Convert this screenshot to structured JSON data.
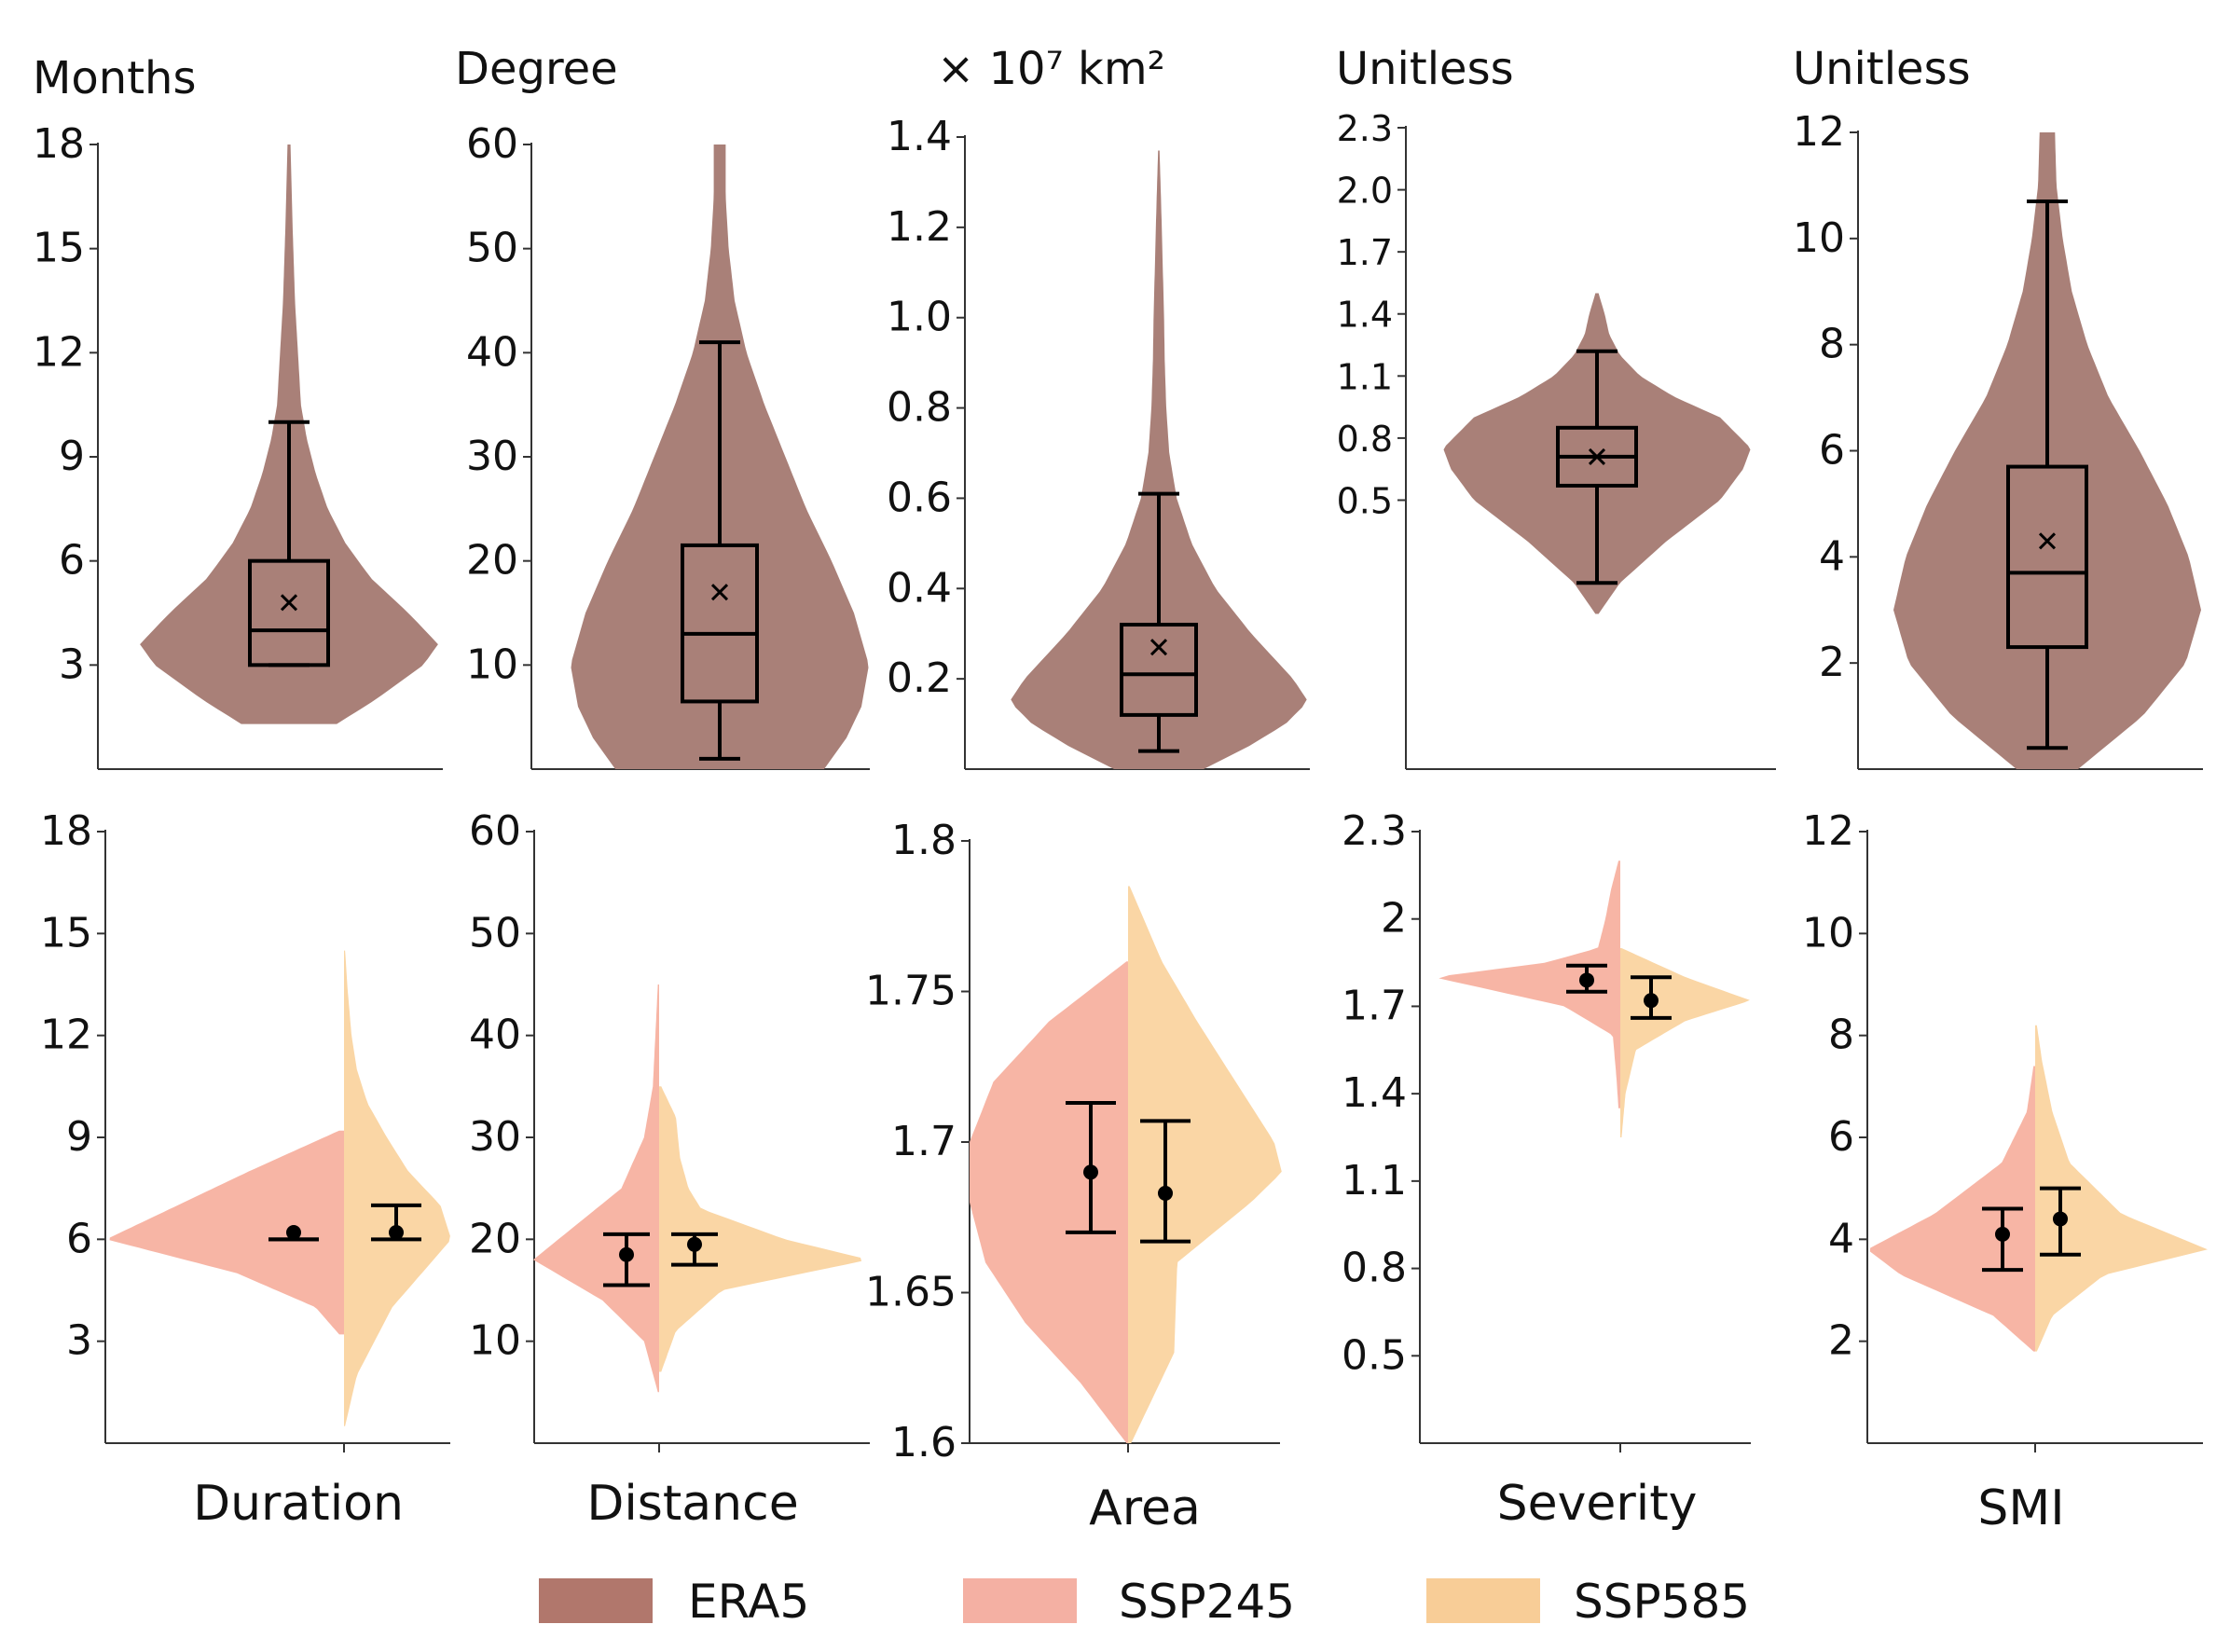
{
  "chart_data": {
    "type": "violin",
    "colors": {
      "ERA5": "#a98078",
      "SSP245": "#f7b5a5",
      "SSP585": "#fad6a5",
      "line": "#000000"
    },
    "legend": [
      {
        "label": "ERA5",
        "color": "#b1776c"
      },
      {
        "label": "SSP245",
        "color": "#f4b0a3"
      },
      {
        "label": "SSP585",
        "color": "#f8cd97"
      }
    ],
    "panels": [
      {
        "variable": "Duration",
        "unit": "Months",
        "top": {
          "ylim": [
            0,
            18
          ],
          "ticks": [
            3,
            6,
            9,
            12,
            15,
            18
          ],
          "tick_labels": [
            "3",
            "6",
            "9",
            "12",
            "15",
            "18"
          ],
          "violin_range": [
            1.3,
            18.0
          ],
          "density": [
            [
              1.3,
              0.32
            ],
            [
              2,
              0.58
            ],
            [
              3,
              0.9
            ],
            [
              3.6,
              1.0
            ],
            [
              4.5,
              0.8
            ],
            [
              5.5,
              0.55
            ],
            [
              6.5,
              0.38
            ],
            [
              7.5,
              0.26
            ],
            [
              8.5,
              0.18
            ],
            [
              9.5,
              0.12
            ],
            [
              10.5,
              0.08
            ],
            [
              12,
              0.06
            ],
            [
              13.5,
              0.04
            ],
            [
              15.5,
              0.025
            ],
            [
              18,
              0.01
            ]
          ],
          "box": {
            "q1": 3.0,
            "median": 4.0,
            "q3": 6.0,
            "whisker_low": 3.0,
            "whisker_high": 10.0,
            "mean": 4.8
          }
        },
        "bottom": {
          "ylim": [
            0,
            18
          ],
          "ticks": [
            3,
            6,
            9,
            12,
            15,
            18
          ],
          "tick_labels": [
            "3",
            "6",
            "9",
            "12",
            "15",
            "18"
          ],
          "ssp245_range": [
            3.2,
            9.2
          ],
          "ssp245_density": [
            [
              3.2,
              0.02
            ],
            [
              4,
              0.12
            ],
            [
              5,
              0.45
            ],
            [
              6,
              1.0
            ],
            [
              7,
              0.7
            ],
            [
              8,
              0.4
            ],
            [
              9.2,
              0.02
            ]
          ],
          "ssp585_range": [
            0.5,
            14.5
          ],
          "ssp585_density": [
            [
              0.5,
              0.01
            ],
            [
              2,
              0.12
            ],
            [
              4,
              0.45
            ],
            [
              6,
              1.0
            ],
            [
              7,
              0.9
            ],
            [
              8,
              0.6
            ],
            [
              9,
              0.4
            ],
            [
              10,
              0.22
            ],
            [
              11,
              0.12
            ],
            [
              12,
              0.07
            ],
            [
              13.5,
              0.03
            ],
            [
              14.5,
              0.01
            ]
          ],
          "ssp245_mean": 6.2,
          "ssp245_ci": [
            6.0,
            6.0
          ],
          "ssp585_mean": 6.2,
          "ssp585_ci": [
            6.0,
            7.0
          ]
        }
      },
      {
        "variable": "Distance",
        "unit": "Degree",
        "top": {
          "ylim": [
            0,
            60
          ],
          "ticks": [
            10,
            20,
            30,
            40,
            50,
            60
          ],
          "tick_labels": [
            "10",
            "20",
            "30",
            "40",
            "50",
            "60"
          ],
          "violin_range": [
            0.0,
            60.0
          ],
          "density": [
            [
              0,
              0.7
            ],
            [
              3,
              0.85
            ],
            [
              6,
              0.95
            ],
            [
              10,
              1.0
            ],
            [
              15,
              0.9
            ],
            [
              20,
              0.75
            ],
            [
              25,
              0.58
            ],
            [
              30,
              0.44
            ],
            [
              35,
              0.3
            ],
            [
              40,
              0.18
            ],
            [
              45,
              0.1
            ],
            [
              50,
              0.06
            ],
            [
              55,
              0.04
            ],
            [
              60,
              0.04
            ]
          ],
          "box": {
            "q1": 6.5,
            "median": 13.0,
            "q3": 21.5,
            "whisker_low": 1.0,
            "whisker_high": 41.0,
            "mean": 17.0
          }
        },
        "bottom": {
          "ylim": [
            0,
            60
          ],
          "ticks": [
            10,
            20,
            30,
            40,
            50,
            60
          ],
          "tick_labels": [
            "10",
            "20",
            "30",
            "40",
            "50",
            "60"
          ],
          "ssp245_range": [
            5.0,
            45.0
          ],
          "ssp245_density": [
            [
              5,
              0.01
            ],
            [
              10,
              0.12
            ],
            [
              14,
              0.45
            ],
            [
              18,
              1.0
            ],
            [
              21,
              0.7
            ],
            [
              25,
              0.3
            ],
            [
              30,
              0.12
            ],
            [
              35,
              0.05
            ],
            [
              45,
              0.01
            ]
          ],
          "ssp585_range": [
            7.0,
            35.0
          ],
          "ssp585_density": [
            [
              7,
              0.01
            ],
            [
              11,
              0.08
            ],
            [
              15,
              0.3
            ],
            [
              18,
              1.0
            ],
            [
              20,
              0.6
            ],
            [
              23,
              0.2
            ],
            [
              25,
              0.14
            ],
            [
              28,
              0.1
            ],
            [
              32,
              0.08
            ],
            [
              35,
              0.01
            ]
          ],
          "ssp245_mean": 18.5,
          "ssp245_ci": [
            15.5,
            20.5
          ],
          "ssp585_mean": 19.5,
          "ssp585_ci": [
            17.5,
            20.5
          ]
        }
      },
      {
        "variable": "Area",
        "unit": "× 10⁷ km²",
        "top": {
          "ylim": [
            0,
            1.4
          ],
          "ticks": [
            0.2,
            0.4,
            0.6,
            0.8,
            1.0,
            1.2,
            1.4
          ],
          "tick_labels": [
            "0.2",
            "0.4",
            "0.6",
            "0.8",
            "1.0",
            "1.2",
            "1.4"
          ],
          "violin_range": [
            0.0,
            1.37
          ],
          "density": [
            [
              0,
              0.3
            ],
            [
              0.05,
              0.6
            ],
            [
              0.1,
              0.85
            ],
            [
              0.15,
              1.0
            ],
            [
              0.2,
              0.9
            ],
            [
              0.3,
              0.62
            ],
            [
              0.4,
              0.38
            ],
            [
              0.5,
              0.22
            ],
            [
              0.6,
              0.12
            ],
            [
              0.7,
              0.07
            ],
            [
              0.8,
              0.05
            ],
            [
              0.9,
              0.04
            ],
            [
              1.0,
              0.035
            ],
            [
              1.2,
              0.02
            ],
            [
              1.37,
              0.005
            ]
          ],
          "box": {
            "q1": 0.12,
            "median": 0.21,
            "q3": 0.32,
            "whisker_low": 0.04,
            "whisker_high": 0.61,
            "mean": 0.27
          }
        },
        "bottom": {
          "ylim": [
            1.6,
            1.8
          ],
          "ticks": [
            1.6,
            1.65,
            1.7,
            1.75,
            1.8
          ],
          "tick_labels": [
            "1.6",
            "1.65",
            "1.7",
            "1.75",
            "1.8"
          ],
          "ssp245_range": [
            1.6,
            1.76
          ],
          "ssp245_density": [
            [
              1.6,
              0.01
            ],
            [
              1.62,
              0.3
            ],
            [
              1.64,
              0.65
            ],
            [
              1.66,
              0.9
            ],
            [
              1.68,
              1.0
            ],
            [
              1.7,
              1.0
            ],
            [
              1.72,
              0.85
            ],
            [
              1.74,
              0.5
            ],
            [
              1.76,
              0.01
            ]
          ],
          "ssp585_range": [
            1.6,
            1.785
          ],
          "ssp585_density": [
            [
              1.6,
              0.02
            ],
            [
              1.63,
              0.3
            ],
            [
              1.66,
              0.32
            ],
            [
              1.68,
              0.8
            ],
            [
              1.69,
              1.0
            ],
            [
              1.7,
              0.95
            ],
            [
              1.72,
              0.7
            ],
            [
              1.74,
              0.45
            ],
            [
              1.76,
              0.22
            ],
            [
              1.785,
              0.01
            ]
          ],
          "ssp245_mean": 1.69,
          "ssp245_ci": [
            1.67,
            1.713
          ],
          "ssp585_mean": 1.683,
          "ssp585_ci": [
            1.667,
            1.707
          ]
        }
      },
      {
        "variable": "Severity",
        "unit": "Unitless",
        "top": {
          "ylim": [
            -0.8,
            2.3
          ],
          "ticks": [
            0.5,
            0.8,
            1.1,
            1.4,
            1.7,
            2.0,
            2.3
          ],
          "tick_labels": [
            "0.5",
            "0.8",
            "1.1",
            "1.4",
            "1.7",
            "2.0",
            "2.3"
          ],
          "violin_range": [
            -0.05,
            1.5
          ],
          "density": [
            [
              -0.05,
              0.01
            ],
            [
              0.1,
              0.15
            ],
            [
              0.3,
              0.45
            ],
            [
              0.5,
              0.8
            ],
            [
              0.65,
              0.95
            ],
            [
              0.75,
              1.0
            ],
            [
              0.9,
              0.8
            ],
            [
              1.0,
              0.5
            ],
            [
              1.1,
              0.28
            ],
            [
              1.2,
              0.15
            ],
            [
              1.3,
              0.08
            ],
            [
              1.4,
              0.05
            ],
            [
              1.5,
              0.01
            ]
          ],
          "box": {
            "q1": 0.57,
            "median": 0.71,
            "q3": 0.85,
            "whisker_low": 0.1,
            "whisker_high": 1.22,
            "mean": 0.71
          }
        },
        "bottom": {
          "ylim": [
            0.2,
            2.3
          ],
          "ticks": [
            0.5,
            0.8,
            1.1,
            1.4,
            1.7,
            2.0,
            2.3
          ],
          "tick_labels": [
            "0.5",
            "0.8",
            "1.1",
            "1.4",
            "1.7",
            "2",
            "2.3"
          ],
          "ssp245_range": [
            1.35,
            2.2
          ],
          "ssp245_density": [
            [
              1.35,
              0.01
            ],
            [
              1.45,
              0.02
            ],
            [
              1.6,
              0.04
            ],
            [
              1.7,
              0.3
            ],
            [
              1.8,
              1.0
            ],
            [
              1.85,
              0.4
            ],
            [
              1.9,
              0.12
            ],
            [
              2.0,
              0.08
            ],
            [
              2.1,
              0.05
            ],
            [
              2.2,
              0.01
            ]
          ],
          "ssp585_range": [
            1.25,
            1.9
          ],
          "ssp585_density": [
            [
              1.25,
              0.01
            ],
            [
              1.4,
              0.04
            ],
            [
              1.55,
              0.12
            ],
            [
              1.65,
              0.5
            ],
            [
              1.72,
              1.0
            ],
            [
              1.8,
              0.5
            ],
            [
              1.9,
              0.01
            ]
          ],
          "ssp245_mean": 1.79,
          "ssp245_ci": [
            1.75,
            1.84
          ],
          "ssp585_mean": 1.72,
          "ssp585_ci": [
            1.66,
            1.8
          ]
        }
      },
      {
        "variable": "SMI",
        "unit": "Unitless",
        "top": {
          "ylim": [
            0,
            12
          ],
          "ticks": [
            2,
            4,
            6,
            8,
            10,
            12
          ],
          "tick_labels": [
            "2",
            "4",
            "6",
            "8",
            "10",
            "12"
          ],
          "violin_range": [
            0.0,
            12.0
          ],
          "density": [
            [
              0,
              0.2
            ],
            [
              1,
              0.62
            ],
            [
              2,
              0.9
            ],
            [
              3,
              1.0
            ],
            [
              4,
              0.92
            ],
            [
              5,
              0.78
            ],
            [
              6,
              0.6
            ],
            [
              7,
              0.4
            ],
            [
              8,
              0.26
            ],
            [
              9,
              0.16
            ],
            [
              10,
              0.1
            ],
            [
              11,
              0.06
            ],
            [
              12,
              0.05
            ]
          ],
          "box": {
            "q1": 2.3,
            "median": 3.7,
            "q3": 5.7,
            "whisker_low": 0.4,
            "whisker_high": 10.7,
            "mean": 4.3
          }
        },
        "bottom": {
          "ylim": [
            0,
            12
          ],
          "ticks": [
            2,
            4,
            6,
            8,
            10,
            12
          ],
          "tick_labels": [
            "2",
            "4",
            "6",
            "8",
            "10",
            "12"
          ],
          "ssp245_range": [
            1.8,
            7.4
          ],
          "ssp245_density": [
            [
              1.8,
              0.01
            ],
            [
              2.5,
              0.25
            ],
            [
              3.3,
              0.8
            ],
            [
              3.8,
              1.0
            ],
            [
              4.5,
              0.6
            ],
            [
              5.5,
              0.2
            ],
            [
              6.5,
              0.05
            ],
            [
              7.4,
              0.01
            ]
          ],
          "ssp585_range": [
            1.8,
            8.2
          ],
          "ssp585_density": [
            [
              1.8,
              0.01
            ],
            [
              2.5,
              0.1
            ],
            [
              3.3,
              0.4
            ],
            [
              3.8,
              1.0
            ],
            [
              4.5,
              0.5
            ],
            [
              5.5,
              0.2
            ],
            [
              6.5,
              0.1
            ],
            [
              7.5,
              0.04
            ],
            [
              8.2,
              0.01
            ]
          ],
          "ssp245_mean": 4.1,
          "ssp245_ci": [
            3.4,
            4.6
          ],
          "ssp585_mean": 4.4,
          "ssp585_ci": [
            3.7,
            5.0
          ]
        }
      }
    ]
  }
}
